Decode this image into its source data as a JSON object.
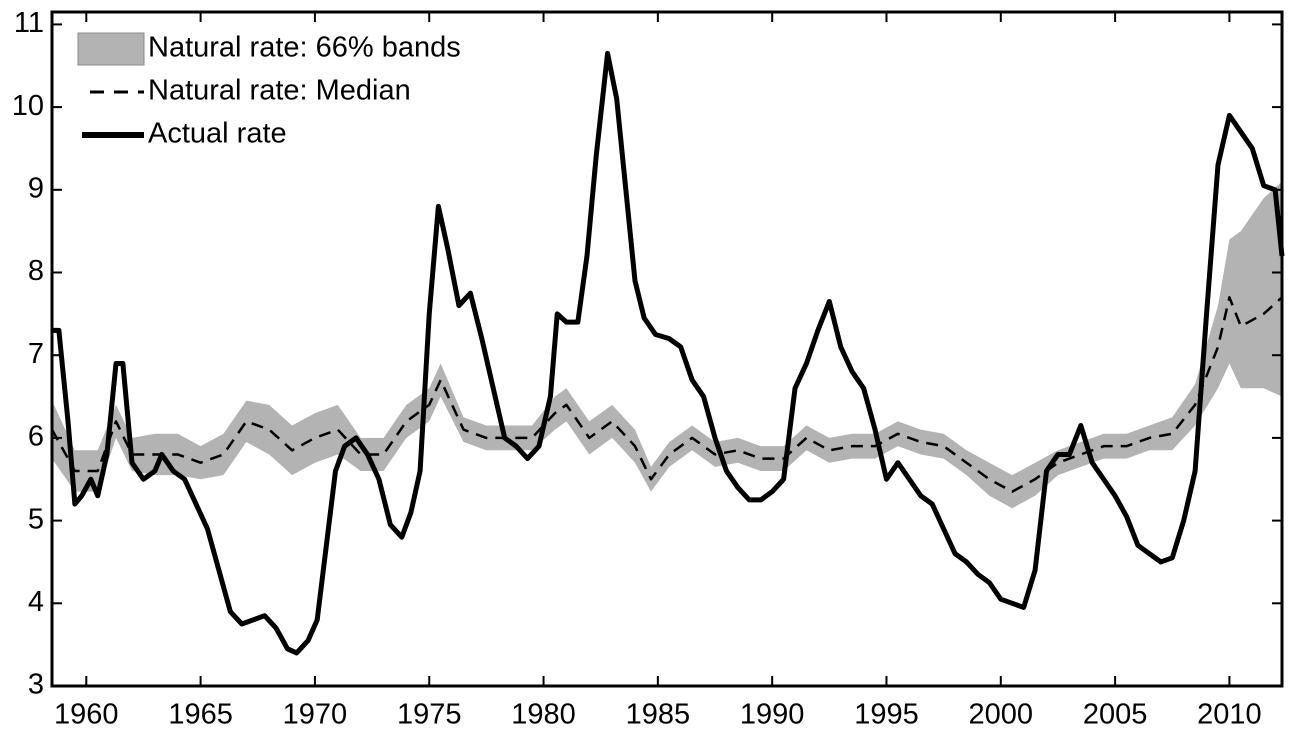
{
  "chart_data": {
    "type": "line",
    "xlim": [
      1958.5,
      2012.3
    ],
    "ylim": [
      3,
      11.15
    ],
    "xticks": [
      1960,
      1965,
      1970,
      1975,
      1980,
      1985,
      1990,
      1995,
      2000,
      2005,
      2010
    ],
    "yticks": [
      3,
      4,
      5,
      6,
      7,
      8,
      9,
      10,
      11
    ],
    "legend": "upper-left",
    "series": [
      {
        "name": "Natural rate: 66% bands",
        "kind": "band",
        "color": "#b3b3b3",
        "x": [
          1958.5,
          1959.5,
          1960.5,
          1961.3,
          1962,
          1963,
          1964,
          1965,
          1966,
          1967,
          1968,
          1969,
          1970,
          1971,
          1972,
          1973,
          1974,
          1975,
          1975.5,
          1976.5,
          1977.5,
          1978.5,
          1979.5,
          1980.5,
          1981,
          1982,
          1983,
          1984,
          1984.7,
          1985.5,
          1986.5,
          1987.5,
          1988.5,
          1989.5,
          1990.5,
          1991.5,
          1992.5,
          1993.5,
          1994.5,
          1995.5,
          1996.5,
          1997.5,
          1998.5,
          1999.5,
          2000.5,
          2001.5,
          2002.5,
          2003.5,
          2004.5,
          2005.5,
          2006.5,
          2007.5,
          2008.5,
          2009.5,
          2010,
          2010.5,
          2011.5,
          2012.3
        ],
        "lower": [
          5.75,
          5.35,
          5.35,
          6.0,
          5.6,
          5.55,
          5.55,
          5.5,
          5.55,
          5.95,
          5.8,
          5.55,
          5.7,
          5.8,
          5.6,
          5.6,
          6.0,
          6.2,
          6.5,
          5.95,
          5.85,
          5.85,
          5.85,
          6.1,
          6.2,
          5.8,
          6.0,
          5.7,
          5.35,
          5.65,
          5.85,
          5.65,
          5.7,
          5.6,
          5.6,
          5.85,
          5.7,
          5.75,
          5.75,
          5.9,
          5.8,
          5.75,
          5.55,
          5.3,
          5.15,
          5.3,
          5.55,
          5.65,
          5.75,
          5.75,
          5.85,
          5.85,
          6.15,
          6.6,
          6.9,
          6.6,
          6.6,
          6.5
        ],
        "upper": [
          6.45,
          5.85,
          5.85,
          6.4,
          6.0,
          6.05,
          6.05,
          5.9,
          6.05,
          6.45,
          6.4,
          6.15,
          6.3,
          6.4,
          6.0,
          6.0,
          6.4,
          6.6,
          6.9,
          6.25,
          6.15,
          6.15,
          6.15,
          6.5,
          6.6,
          6.2,
          6.4,
          6.1,
          5.65,
          5.95,
          6.15,
          5.95,
          6.0,
          5.9,
          5.9,
          6.15,
          6.0,
          6.05,
          6.05,
          6.2,
          6.1,
          6.05,
          5.85,
          5.7,
          5.55,
          5.7,
          5.85,
          5.95,
          6.05,
          6.05,
          6.15,
          6.25,
          6.65,
          7.6,
          8.4,
          8.5,
          8.9,
          9.1
        ]
      },
      {
        "name": "Natural rate: Median",
        "kind": "dashed",
        "color": "#000000",
        "x": [
          1958.5,
          1959.5,
          1960.5,
          1961.3,
          1962,
          1963,
          1964,
          1965,
          1966,
          1967,
          1968,
          1969,
          1970,
          1971,
          1972,
          1973,
          1974,
          1975,
          1975.5,
          1976.5,
          1977.5,
          1978.5,
          1979.5,
          1980.5,
          1981,
          1982,
          1983,
          1984,
          1984.7,
          1985.5,
          1986.5,
          1987.5,
          1988.5,
          1989.5,
          1990.5,
          1991.5,
          1992.5,
          1993.5,
          1994.5,
          1995.5,
          1996.5,
          1997.5,
          1998.5,
          1999.5,
          2000.5,
          2001.5,
          2002.5,
          2003.5,
          2004.5,
          2005.5,
          2006.5,
          2007.5,
          2008.5,
          2009.5,
          2010,
          2010.5,
          2011.5,
          2012.3
        ],
        "values": [
          6.1,
          5.6,
          5.6,
          6.2,
          5.8,
          5.8,
          5.8,
          5.7,
          5.8,
          6.2,
          6.1,
          5.85,
          6.0,
          6.1,
          5.8,
          5.8,
          6.2,
          6.4,
          6.7,
          6.1,
          6.0,
          6.0,
          6.0,
          6.3,
          6.4,
          6.0,
          6.2,
          5.9,
          5.5,
          5.8,
          6.0,
          5.8,
          5.85,
          5.75,
          5.75,
          6.0,
          5.85,
          5.9,
          5.9,
          6.05,
          5.95,
          5.9,
          5.7,
          5.5,
          5.35,
          5.5,
          5.7,
          5.8,
          5.9,
          5.9,
          6.0,
          6.05,
          6.4,
          7.1,
          7.7,
          7.35,
          7.5,
          7.7
        ]
      },
      {
        "name": "Actual rate",
        "kind": "solid",
        "color": "#000000",
        "x": [
          1958.5,
          1958.8,
          1959.2,
          1959.5,
          1959.8,
          1960.2,
          1960.5,
          1960.9,
          1961.3,
          1961.6,
          1962,
          1962.5,
          1963,
          1963.3,
          1963.8,
          1964.3,
          1964.8,
          1965.3,
          1965.8,
          1966.3,
          1966.8,
          1967.3,
          1967.8,
          1968.3,
          1968.8,
          1969.2,
          1969.7,
          1970.1,
          1970.5,
          1970.9,
          1971.3,
          1971.8,
          1972.3,
          1972.8,
          1973.3,
          1973.8,
          1974.2,
          1974.6,
          1975.0,
          1975.4,
          1975.8,
          1976.3,
          1976.8,
          1977.3,
          1977.8,
          1978.3,
          1978.8,
          1979.3,
          1979.8,
          1980.3,
          1980.6,
          1981.0,
          1981.5,
          1981.9,
          1982.3,
          1982.8,
          1983.2,
          1983.6,
          1984.0,
          1984.4,
          1984.9,
          1985.5,
          1986.0,
          1986.5,
          1987.0,
          1987.5,
          1988.0,
          1988.5,
          1989.0,
          1989.5,
          1990.0,
          1990.5,
          1991.0,
          1991.5,
          1992.0,
          1992.5,
          1993.0,
          1993.5,
          1994.0,
          1994.5,
          1995.0,
          1995.5,
          1996.0,
          1996.5,
          1997.0,
          1997.5,
          1998.0,
          1998.5,
          1999.0,
          1999.5,
          2000.0,
          2000.5,
          2001.0,
          2001.5,
          2002.0,
          2002.5,
          2003.0,
          2003.5,
          2004.0,
          2004.5,
          2005.0,
          2005.5,
          2006.0,
          2006.5,
          2007.0,
          2007.5,
          2008.0,
          2008.5,
          2009.0,
          2009.5,
          2010.0,
          2010.5,
          2011.0,
          2011.5,
          2012.0,
          2012.3
        ],
        "values": [
          7.3,
          7.3,
          6.2,
          5.2,
          5.3,
          5.5,
          5.3,
          5.8,
          6.9,
          6.9,
          5.7,
          5.5,
          5.6,
          5.8,
          5.6,
          5.5,
          5.2,
          4.9,
          4.4,
          3.9,
          3.75,
          3.8,
          3.85,
          3.7,
          3.45,
          3.4,
          3.55,
          3.8,
          4.7,
          5.6,
          5.9,
          6.0,
          5.8,
          5.5,
          4.95,
          4.8,
          5.1,
          5.6,
          7.5,
          8.8,
          8.3,
          7.6,
          7.75,
          7.2,
          6.6,
          6.0,
          5.9,
          5.75,
          5.9,
          6.5,
          7.5,
          7.4,
          7.4,
          8.2,
          9.4,
          10.65,
          10.1,
          9.0,
          7.9,
          7.45,
          7.25,
          7.2,
          7.1,
          6.7,
          6.5,
          6.0,
          5.6,
          5.4,
          5.25,
          5.25,
          5.35,
          5.5,
          6.6,
          6.9,
          7.3,
          7.65,
          7.1,
          6.8,
          6.6,
          6.1,
          5.5,
          5.7,
          5.5,
          5.3,
          5.2,
          4.9,
          4.6,
          4.5,
          4.35,
          4.25,
          4.05,
          4.0,
          3.95,
          4.4,
          5.6,
          5.8,
          5.8,
          6.15,
          5.7,
          5.5,
          5.3,
          5.05,
          4.7,
          4.6,
          4.5,
          4.55,
          5.0,
          5.6,
          7.5,
          9.3,
          9.9,
          9.7,
          9.5,
          9.05,
          9.0,
          8.2
        ]
      }
    ]
  }
}
